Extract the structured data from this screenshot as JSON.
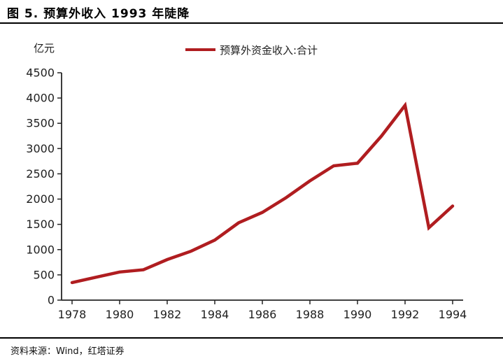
{
  "header": {
    "title": "图 5. 预算外收入 1993 年陡降"
  },
  "chart": {
    "unit_label": "亿元",
    "legend_label": "预算外资金收入:合计"
  },
  "footer": {
    "source": "资料来源：Wind，红塔证券"
  },
  "colors": {
    "line": "#b01d20",
    "axis": "#262626",
    "tick_text": "#1f1f1f"
  },
  "chart_data": {
    "type": "line",
    "title": "预算外收入 1993 年陡降",
    "ylabel": "亿元",
    "xlabel": "",
    "grid": false,
    "legend_position": "top-center",
    "x": [
      1978,
      1979,
      1980,
      1981,
      1982,
      1983,
      1984,
      1985,
      1986,
      1987,
      1988,
      1989,
      1990,
      1991,
      1992,
      1993,
      1994
    ],
    "series": [
      {
        "name": "预算外资金收入:合计",
        "values": [
          347,
          453,
          557,
          601,
          803,
          968,
          1188,
          1530,
          1737,
          2029,
          2361,
          2659,
          2709,
          3243,
          3855,
          1433,
          1863
        ]
      }
    ],
    "xticks": [
      1978,
      1980,
      1982,
      1984,
      1986,
      1988,
      1990,
      1992,
      1994
    ],
    "ylim": [
      0,
      4500
    ],
    "ytick_step": 500
  }
}
